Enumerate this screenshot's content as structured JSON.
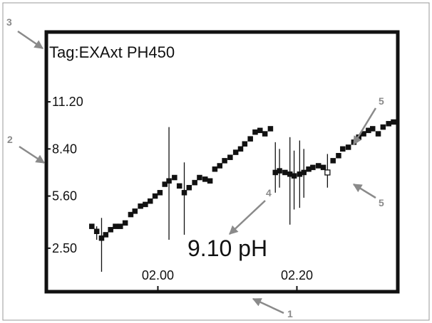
{
  "display": {
    "tag_label": "Tag:EXAxt PH450",
    "reading": "9.10 pH"
  },
  "callouts": [
    "1",
    "2",
    "3",
    "4",
    "5",
    "5"
  ],
  "colors": {
    "ink": "#111111",
    "callout": "#8a8a8a",
    "frame": "#999999",
    "background": "#ffffff"
  },
  "chart_data": {
    "type": "line",
    "title": "",
    "xlabel": "",
    "ylabel": "",
    "x_ticks": [
      "02.00",
      "02.20"
    ],
    "x_tick_minutes": [
      120,
      140
    ],
    "y_ticks": [
      "11.20",
      "8.40",
      "5.60",
      "2.50"
    ],
    "y_tick_values": [
      11.2,
      8.4,
      5.6,
      2.5
    ],
    "xlim_minutes": [
      109.8,
      153.9
    ],
    "ylim": [
      0.0,
      12.6
    ],
    "grid": false,
    "series": [
      {
        "x": [
          110.5,
          111.2,
          111.9,
          112.5,
          113.2,
          113.9,
          114.6,
          115.3,
          116.1,
          116.7,
          117.5,
          118.2,
          118.9,
          119.6,
          120.3,
          121.0,
          121.6,
          122.4,
          123.1,
          123.8,
          124.5,
          125.3,
          126.0,
          126.8,
          127.5,
          128.2,
          128.9,
          129.6,
          130.4,
          131.2,
          131.9,
          132.5,
          133.3,
          134.0,
          134.7,
          135.4,
          136.2,
          136.9,
          137.5,
          138.3,
          139.0,
          139.6,
          140.4,
          141.0,
          141.7,
          142.3,
          143.1,
          143.8,
          144.4,
          145.2,
          146.0,
          146.6,
          147.4,
          148.2,
          148.9,
          149.6,
          150.3,
          150.9,
          151.7,
          152.4,
          153.2,
          153.9
        ],
        "y": [
          3.8,
          3.5,
          3.1,
          3.3,
          3.6,
          3.8,
          3.8,
          4.0,
          4.5,
          4.7,
          5.0,
          5.1,
          5.3,
          5.6,
          5.8,
          6.3,
          6.5,
          6.7,
          6.2,
          5.8,
          6.1,
          6.4,
          6.7,
          6.6,
          6.5,
          7.2,
          7.4,
          7.7,
          7.9,
          8.2,
          8.4,
          8.7,
          9.0,
          9.4,
          9.5,
          9.3,
          9.6,
          7.0,
          7.1,
          7.0,
          6.9,
          6.8,
          6.9,
          7.0,
          7.2,
          7.3,
          7.4,
          7.3,
          7.0,
          7.7,
          8.0,
          8.4,
          8.5,
          8.8,
          9.1,
          9.3,
          9.5,
          9.6,
          9.3,
          9.7,
          9.9,
          10.0
        ],
        "error_low": [
          0,
          0.5,
          2.0,
          0,
          0,
          0,
          0,
          0,
          0,
          0,
          0,
          0,
          0,
          0,
          0,
          0,
          3.5,
          0,
          0,
          2.5,
          0,
          0,
          0,
          0,
          0,
          0,
          0,
          0,
          0,
          0,
          0,
          0,
          0,
          0,
          0,
          0,
          0,
          1.2,
          1.0,
          0,
          3.0,
          2.0,
          2.0,
          1.5,
          0,
          0,
          0,
          0,
          0.9,
          0,
          0,
          0,
          0,
          0,
          0,
          0,
          0,
          0,
          0,
          0,
          0,
          0
        ],
        "error_high": [
          0,
          0.3,
          1.2,
          0,
          0,
          0,
          0,
          0,
          0,
          0,
          0,
          0,
          0,
          0,
          0,
          0,
          3.2,
          0,
          0,
          1.8,
          0,
          0,
          0,
          0,
          0,
          0,
          0,
          0,
          0,
          0,
          0,
          0,
          0,
          0,
          0,
          0,
          0,
          1.8,
          1.3,
          0,
          2.2,
          1.5,
          2.0,
          1.4,
          0,
          0,
          0,
          0,
          1.1,
          0,
          0,
          0,
          0,
          0,
          0,
          0,
          0,
          0,
          0,
          0,
          0,
          0
        ],
        "open_point_index": 48
      }
    ]
  }
}
